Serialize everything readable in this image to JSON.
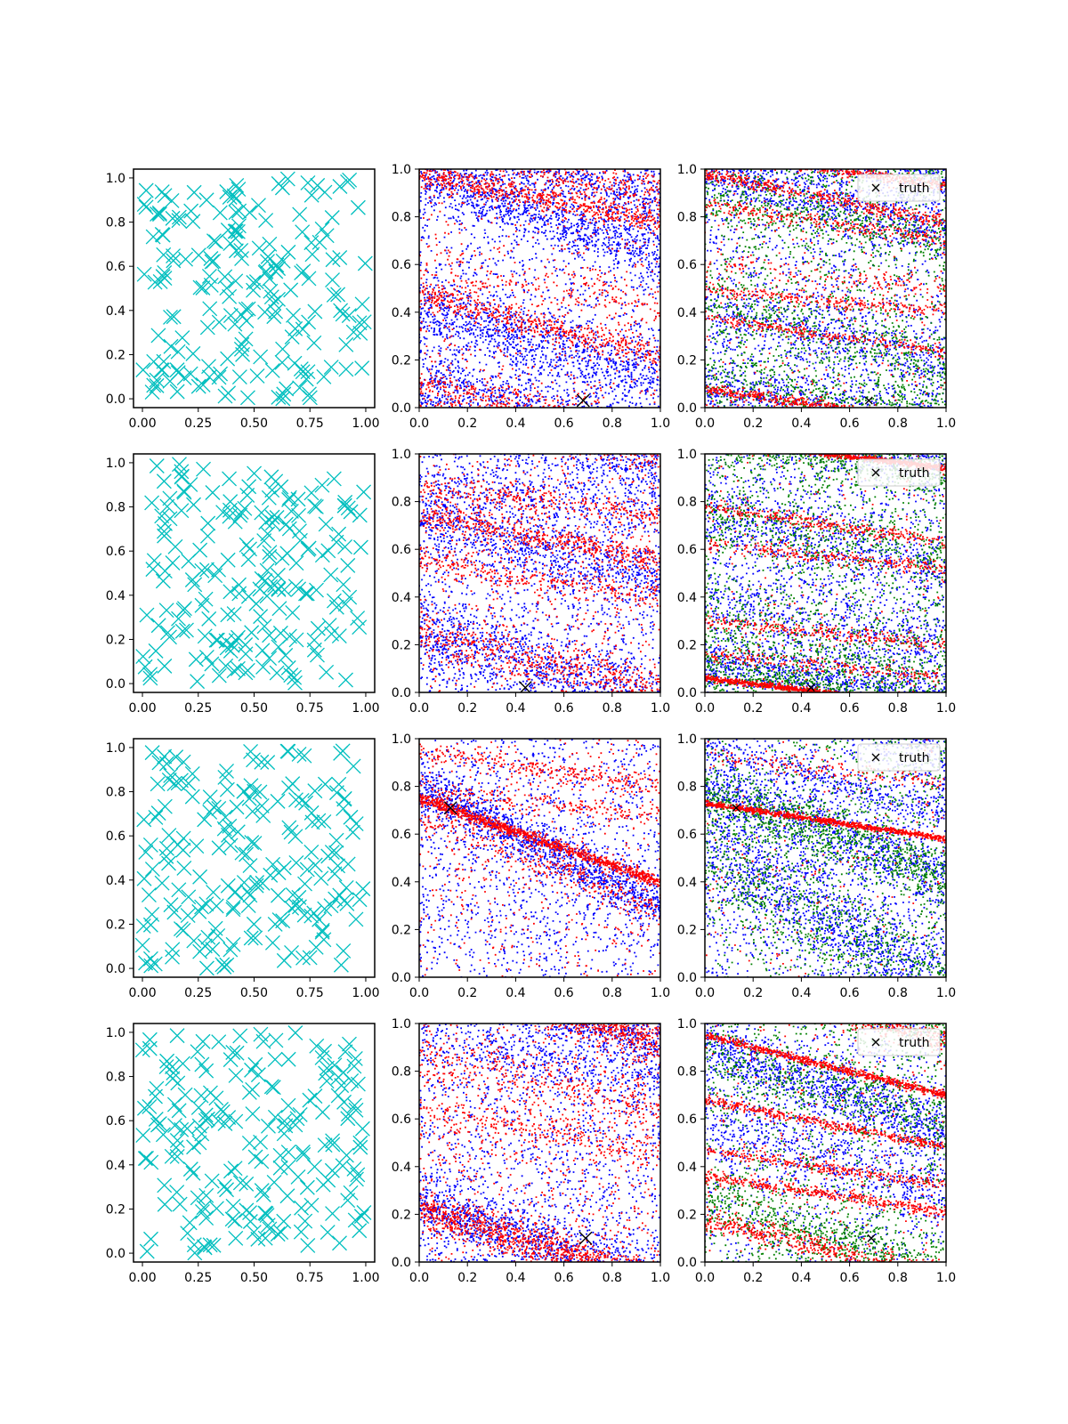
{
  "figure": {
    "rows": 4,
    "columns": 3,
    "background": "#ffffff"
  },
  "legend_label": "truth",
  "colors": {
    "samples": "#00bfbf",
    "model_a": "#0000ff",
    "model_b": "#ff0000",
    "model_c": "#008000",
    "truth": "#000000"
  },
  "axes": {
    "samples_ticks": [
      "0.00",
      "0.25",
      "0.50",
      "0.75",
      "1.00"
    ],
    "samples_tick_values": [
      0,
      0.25,
      0.5,
      0.75,
      1.0
    ],
    "samples_y_ticks": [
      "0.0",
      "0.2",
      "0.4",
      "0.6",
      "0.8",
      "1.0"
    ],
    "samples_y_tick_values": [
      0,
      0.2,
      0.4,
      0.6,
      0.8,
      1.0
    ],
    "samples_xlim": [
      -0.04,
      1.04
    ],
    "samples_ylim": [
      -0.04,
      1.04
    ],
    "posterior_ticks": [
      "0.0",
      "0.2",
      "0.4",
      "0.6",
      "0.8",
      "1.0"
    ],
    "posterior_tick_values": [
      0,
      0.2,
      0.4,
      0.6,
      0.8,
      1.0
    ],
    "posterior_xlim": [
      0,
      1
    ],
    "posterior_ylim": [
      0,
      1
    ]
  },
  "chart_data": [
    {
      "row": 1,
      "panels": [
        {
          "type": "scatter",
          "kind": "samples",
          "marker": "x",
          "count": 200,
          "seed": 11
        },
        {
          "type": "scatter",
          "kind": "posterior",
          "truth": [
            0.68,
            0.03
          ],
          "seed": 12,
          "series": [
            {
              "color": "model_a",
              "bands": [
                [
                  0.98,
                  -0.35,
                  0.05,
                  800
                ],
                [
                  0.42,
                  -0.3,
                  0.07,
                  900
                ],
                [
                  0.12,
                  -0.25,
                  0.07,
                  700
                ]
              ],
              "uniform": 1200
            },
            {
              "color": "model_b",
              "bands": [
                [
                  0.98,
                  -0.2,
                  0.025,
                  600
                ],
                [
                  0.47,
                  -0.25,
                  0.03,
                  500
                ],
                [
                  0.1,
                  -0.2,
                  0.04,
                  400
                ],
                [
                  0.55,
                  -0.1,
                  0.05,
                  200
                ]
              ],
              "uniform": 500
            }
          ]
        },
        {
          "type": "scatter",
          "kind": "posterior",
          "truth": [
            0.68,
            0.03
          ],
          "legend": true,
          "seed": 13,
          "series": [
            {
              "color": "model_a",
              "bands": [
                [
                  0.98,
                  -0.25,
                  0.05,
                  600
                ],
                [
                  0.4,
                  -0.2,
                  0.07,
                  500
                ],
                [
                  0.1,
                  -0.15,
                  0.06,
                  500
                ]
              ],
              "uniform": 1100
            },
            {
              "color": "model_c",
              "bands": [
                [
                  0.9,
                  -0.2,
                  0.06,
                  400
                ],
                [
                  0.42,
                  -0.25,
                  0.08,
                  400
                ],
                [
                  0.12,
                  -0.15,
                  0.06,
                  400
                ]
              ],
              "uniform": 900
            },
            {
              "color": "model_b",
              "bands": [
                [
                  0.98,
                  -0.2,
                  0.015,
                  400
                ],
                [
                  0.85,
                  -0.15,
                  0.015,
                  250
                ],
                [
                  0.5,
                  -0.1,
                  0.015,
                  250
                ],
                [
                  0.38,
                  -0.15,
                  0.012,
                  250
                ],
                [
                  0.08,
                  -0.15,
                  0.012,
                  500
                ],
                [
                  0.6,
                  -0.1,
                  0.03,
                  150
                ]
              ],
              "uniform": 300
            }
          ]
        }
      ]
    },
    {
      "row": 2,
      "panels": [
        {
          "type": "scatter",
          "kind": "samples",
          "marker": "x",
          "count": 200,
          "seed": 21
        },
        {
          "type": "scatter",
          "kind": "posterior",
          "truth": [
            0.44,
            0.02
          ],
          "seed": 22,
          "series": [
            {
              "color": "model_a",
              "bands": [
                [
                  0.72,
                  -0.25,
                  0.06,
                  700
                ],
                [
                  0.25,
                  -0.3,
                  0.08,
                  900
                ],
                [
                  0.88,
                  -0.15,
                  0.06,
                  300
                ]
              ],
              "uniform": 1300
            },
            {
              "color": "model_b",
              "bands": [
                [
                  0.75,
                  -0.2,
                  0.03,
                  500
                ],
                [
                  0.25,
                  -0.25,
                  0.05,
                  500
                ],
                [
                  0.55,
                  -0.15,
                  0.03,
                  300
                ],
                [
                  0.85,
                  -0.1,
                  0.03,
                  300
                ]
              ],
              "uniform": 600
            }
          ]
        },
        {
          "type": "scatter",
          "kind": "posterior",
          "truth": [
            0.44,
            0.02
          ],
          "legend": true,
          "seed": 23,
          "series": [
            {
              "color": "model_a",
              "bands": [
                [
                  0.12,
                  -0.15,
                  0.05,
                  700
                ],
                [
                  0.75,
                  -0.25,
                  0.07,
                  500
                ],
                [
                  0.4,
                  -0.2,
                  0.08,
                  400
                ]
              ],
              "uniform": 1200
            },
            {
              "color": "model_c",
              "bands": [
                [
                  0.1,
                  -0.2,
                  0.05,
                  700
                ],
                [
                  0.75,
                  -0.2,
                  0.07,
                  400
                ],
                [
                  0.3,
                  -0.25,
                  0.08,
                  400
                ]
              ],
              "uniform": 1000
            },
            {
              "color": "model_b",
              "bands": [
                [
                  0.06,
                  -0.12,
                  0.006,
                  900
                ],
                [
                  0.78,
                  -0.15,
                  0.015,
                  300
                ],
                [
                  0.62,
                  -0.1,
                  0.015,
                  250
                ],
                [
                  0.3,
                  -0.1,
                  0.015,
                  250
                ],
                [
                  0.16,
                  -0.1,
                  0.015,
                  200
                ]
              ],
              "uniform": 250
            }
          ]
        }
      ]
    },
    {
      "row": 3,
      "panels": [
        {
          "type": "scatter",
          "kind": "samples",
          "marker": "x",
          "count": 200,
          "seed": 31
        },
        {
          "type": "scatter",
          "kind": "posterior",
          "truth": [
            0.13,
            0.71
          ],
          "seed": 32,
          "series": [
            {
              "color": "model_a",
              "bands": [
                [
                  0.8,
                  -0.5,
                  0.05,
                  1200
                ]
              ],
              "uniform": 1300
            },
            {
              "color": "model_b",
              "bands": [
                [
                  0.75,
                  -0.35,
                  0.012,
                  1000
                ],
                [
                  0.68,
                  -0.4,
                  0.04,
                  300
                ],
                [
                  0.95,
                  -0.15,
                  0.02,
                  250
                ],
                [
                  0.78,
                  -0.1,
                  0.02,
                  200
                ]
              ],
              "uniform": 500
            }
          ]
        },
        {
          "type": "scatter",
          "kind": "posterior",
          "truth": [
            0.13,
            0.71
          ],
          "legend": true,
          "seed": 33,
          "series": [
            {
              "color": "model_a",
              "bands": [
                [
                  0.82,
                  -0.4,
                  0.07,
                  900
                ],
                [
                  0.55,
                  -0.6,
                  0.12,
                  1200
                ],
                [
                  0.98,
                  -0.3,
                  0.03,
                  300
                ]
              ],
              "uniform": 900
            },
            {
              "color": "model_c",
              "bands": [
                [
                  0.78,
                  -0.35,
                  0.06,
                  900
                ],
                [
                  0.5,
                  -0.55,
                  0.12,
                  700
                ]
              ],
              "uniform": 700
            },
            {
              "color": "model_b",
              "bands": [
                [
                  0.73,
                  -0.15,
                  0.006,
                  900
                ],
                [
                  0.92,
                  -0.1,
                  0.02,
                  150
                ]
              ],
              "uniform": 200
            }
          ]
        }
      ]
    },
    {
      "row": 4,
      "panels": [
        {
          "type": "scatter",
          "kind": "samples",
          "marker": "x",
          "count": 200,
          "seed": 41
        },
        {
          "type": "scatter",
          "kind": "posterior",
          "truth": [
            0.69,
            0.1
          ],
          "seed": 42,
          "series": [
            {
              "color": "model_a",
              "bands": [
                [
                  0.25,
                  -0.35,
                  0.06,
                  1000
                ],
                [
                  0.95,
                  -0.2,
                  0.05,
                  300
                ]
              ],
              "uniform": 1400
            },
            {
              "color": "model_b",
              "bands": [
                [
                  0.22,
                  -0.3,
                  0.04,
                  1000
                ],
                [
                  0.85,
                  -0.2,
                  0.05,
                  300
                ],
                [
                  0.62,
                  -0.15,
                  0.05,
                  300
                ]
              ],
              "uniform": 700
            }
          ]
        },
        {
          "type": "scatter",
          "kind": "posterior",
          "truth": [
            0.69,
            0.1
          ],
          "legend": true,
          "seed": 43,
          "series": [
            {
              "color": "model_a",
              "bands": [
                [
                  0.9,
                  -0.35,
                  0.06,
                  900
                ],
                [
                  0.6,
                  -0.3,
                  0.08,
                  500
                ]
              ],
              "uniform": 1000
            },
            {
              "color": "model_c",
              "bands": [
                [
                  0.25,
                  -0.3,
                  0.07,
                  700
                ],
                [
                  0.88,
                  -0.3,
                  0.07,
                  500
                ]
              ],
              "uniform": 800
            },
            {
              "color": "model_b",
              "bands": [
                [
                  0.95,
                  -0.25,
                  0.008,
                  700
                ],
                [
                  0.68,
                  -0.2,
                  0.01,
                  400
                ],
                [
                  0.47,
                  -0.15,
                  0.012,
                  300
                ],
                [
                  0.36,
                  -0.15,
                  0.012,
                  400
                ],
                [
                  0.18,
                  -0.25,
                  0.025,
                  500
                ]
              ],
              "uniform": 300
            }
          ]
        }
      ]
    }
  ]
}
